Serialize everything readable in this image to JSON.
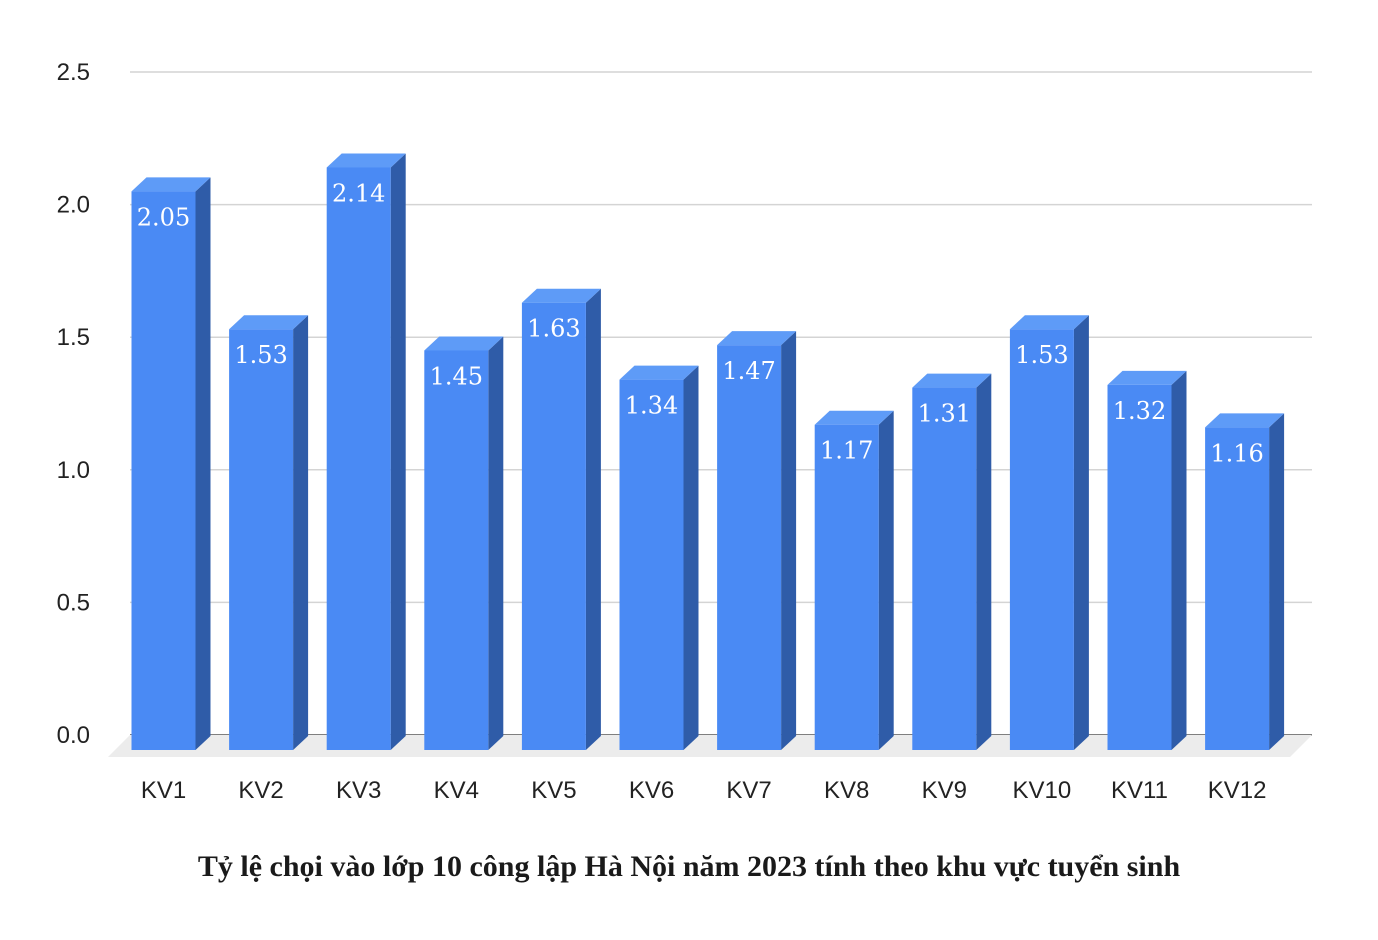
{
  "chart_data": {
    "type": "bar",
    "title": "Tỷ lệ chọi vào lớp 10 công lập Hà Nội năm 2023 tính theo khu vực tuyển sinh",
    "categories": [
      "KV1",
      "KV2",
      "KV3",
      "KV4",
      "KV5",
      "KV6",
      "KV7",
      "KV8",
      "KV9",
      "KV10",
      "KV11",
      "KV12"
    ],
    "values": [
      2.05,
      1.53,
      2.14,
      1.45,
      1.63,
      1.34,
      1.47,
      1.17,
      1.31,
      1.53,
      1.32,
      1.16
    ],
    "data_labels": [
      "2.05",
      "1.53",
      "2.14",
      "1.45",
      "1.63",
      "1.34",
      "1.47",
      "1.17",
      "1.31",
      "1.53",
      "1.32",
      "1.16"
    ],
    "yticks": [
      "0.0",
      "0.5",
      "1.0",
      "1.5",
      "2.0",
      "2.5"
    ],
    "ylim": [
      0,
      2.5
    ],
    "grid": true,
    "legend": "none",
    "style": "3d-bar",
    "colors": {
      "front": "#4a8af4",
      "top": "#5e9bf7",
      "side": "#2f5ca8",
      "grid": "#d4d4d4",
      "floor": "#ececec"
    }
  }
}
